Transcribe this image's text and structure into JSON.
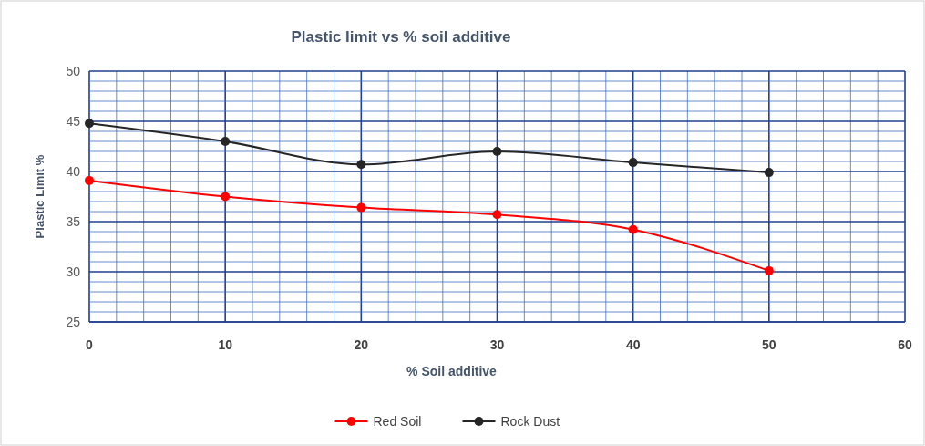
{
  "chart_data": {
    "type": "line",
    "title": "Plastic limit vs % soil additive",
    "xlabel": "% Soil additive",
    "ylabel": "Plastic Limit %",
    "x": [
      0,
      10,
      20,
      30,
      40,
      50
    ],
    "series": [
      {
        "name": "Red Soil",
        "color": "#ff0000",
        "values": [
          39.1,
          37.5,
          36.4,
          35.7,
          34.2,
          30.1
        ]
      },
      {
        "name": "Rock Dust",
        "color": "#262626",
        "values": [
          44.8,
          43.0,
          40.7,
          42.0,
          40.9,
          39.9
        ]
      }
    ],
    "xlim": [
      0,
      60
    ],
    "xticks": [
      0,
      {
        "value": 2,
        "label": null
      },
      {
        "value": 4,
        "label": null
      },
      {
        "value": 6,
        "label": null
      },
      {
        "value": 8,
        "label": null
      },
      10,
      {
        "value": 12,
        "label": null
      },
      {
        "value": 14,
        "label": null
      },
      {
        "value": 16,
        "label": null
      },
      {
        "value": 18,
        "label": null
      },
      20,
      {
        "value": 22,
        "label": null
      },
      {
        "value": 24,
        "label": null
      },
      {
        "value": 26,
        "label": null
      },
      {
        "value": 28,
        "label": null
      },
      30,
      {
        "value": 32,
        "label": null
      },
      {
        "value": 34,
        "label": null
      },
      {
        "value": 36,
        "label": null
      },
      {
        "value": 38,
        "label": null
      },
      40,
      {
        "value": 42,
        "label": null
      },
      {
        "value": 44,
        "label": null
      },
      {
        "value": 46,
        "label": null
      },
      {
        "value": 48,
        "label": null
      },
      50,
      {
        "value": 52,
        "label": null
      },
      {
        "value": 54,
        "label": null
      },
      {
        "value": 56,
        "label": null
      },
      {
        "value": 58,
        "label": null
      },
      60
    ],
    "ylim": [
      25,
      50
    ],
    "yticks": [
      25,
      {
        "value": 26,
        "label": null
      },
      {
        "value": 27,
        "label": null
      },
      {
        "value": 28,
        "label": null
      },
      {
        "value": 29,
        "label": null
      },
      30,
      {
        "value": 31,
        "label": null
      },
      {
        "value": 32,
        "label": null
      },
      {
        "value": 33,
        "label": null
      },
      {
        "value": 34,
        "label": null
      },
      35,
      {
        "value": 36,
        "label": null
      },
      {
        "value": 37,
        "label": null
      },
      {
        "value": 38,
        "label": null
      },
      {
        "value": 39,
        "label": null
      },
      40,
      {
        "value": 41,
        "label": null
      },
      {
        "value": 42,
        "label": null
      },
      {
        "value": 43,
        "label": null
      },
      {
        "value": 44,
        "label": null
      },
      45,
      {
        "value": 46,
        "label": null
      },
      {
        "value": 47,
        "label": null
      },
      {
        "value": 48,
        "label": null
      },
      {
        "value": 49,
        "label": null
      },
      50
    ],
    "grid": true,
    "legend": "bottom",
    "marker": "circle",
    "line_style": "solid"
  }
}
